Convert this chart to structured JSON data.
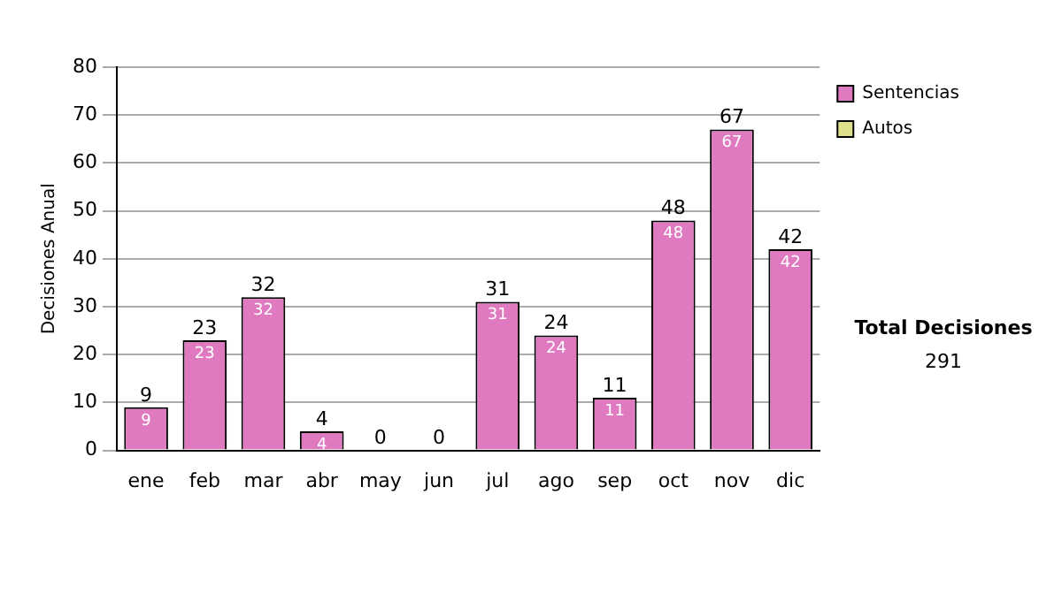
{
  "chart_data": {
    "type": "bar",
    "stacked": true,
    "ylabel": "Decisiones Anual",
    "categories": [
      "ene",
      "feb",
      "mar",
      "abr",
      "may",
      "jun",
      "jul",
      "ago",
      "sep",
      "oct",
      "nov",
      "dic"
    ],
    "series": [
      {
        "name": "Sentencias",
        "color": "#e07ac0",
        "values": [
          9,
          23,
          32,
          4,
          0,
          0,
          31,
          24,
          11,
          48,
          67,
          42
        ],
        "value_labels": [
          "9",
          "23",
          "32",
          "4",
          null,
          null,
          "31",
          "24",
          "11",
          "48",
          "67",
          "42"
        ]
      },
      {
        "name": "Autos",
        "color": "#e0e08c",
        "values": [
          0,
          0,
          0,
          0,
          0,
          0,
          0,
          0,
          0,
          0,
          0,
          0
        ]
      }
    ],
    "totals": [
      "9",
      "23",
      "32",
      "4",
      "0",
      "0",
      "31",
      "24",
      "11",
      "48",
      "67",
      "42"
    ],
    "ylim": [
      0,
      80
    ],
    "yticks": [
      0,
      10,
      20,
      30,
      40,
      50,
      60,
      70,
      80
    ],
    "grid": "y",
    "legend": "right",
    "annotations": [
      "Total Decisiones",
      "291"
    ]
  }
}
